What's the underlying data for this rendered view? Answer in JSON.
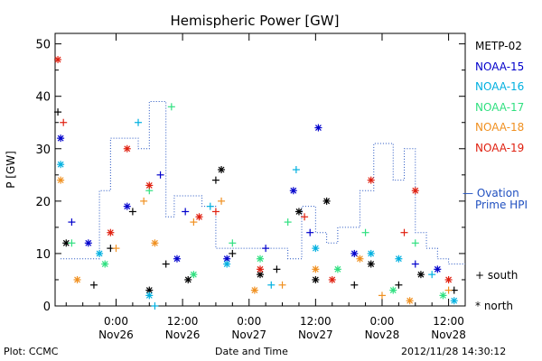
{
  "chart_data": {
    "type": "scatter",
    "title": "Hemispheric Power [GW]",
    "ylabel": "P [GW]",
    "xlabel": "Date and Time",
    "ylim": [
      0,
      52
    ],
    "yticks": [
      0,
      10,
      20,
      30,
      40,
      50
    ],
    "xlim": [
      "2012-11-25T13:00",
      "2012-11-28T15:00"
    ],
    "xticks": [
      {
        "time": "2012-11-26T00:00",
        "label1": "0:00",
        "label2": "Nov26"
      },
      {
        "time": "2012-11-26T12:00",
        "label1": "12:00",
        "label2": "Nov26"
      },
      {
        "time": "2012-11-27T00:00",
        "label1": "0:00",
        "label2": "Nov27"
      },
      {
        "time": "2012-11-27T12:00",
        "label1": "12:00",
        "label2": "Nov27"
      },
      {
        "time": "2012-11-28T00:00",
        "label1": "0:00",
        "label2": "Nov28"
      },
      {
        "time": "2012-11-28T12:00",
        "label1": "12:00",
        "label2": "Nov28"
      }
    ],
    "grid": false,
    "legend_position": "right",
    "series": [
      {
        "name": "METP-02",
        "color": "#000000",
        "points": [
          {
            "x": "2012-11-25T13:30",
            "y": 37,
            "m": "+"
          },
          {
            "x": "2012-11-25T15:00",
            "y": 12,
            "m": "*"
          },
          {
            "x": "2012-11-25T20:00",
            "y": 4,
            "m": "+"
          },
          {
            "x": "2012-11-25T23:00",
            "y": 11,
            "m": "+"
          },
          {
            "x": "2012-11-26T03:00",
            "y": 18,
            "m": "+"
          },
          {
            "x": "2012-11-26T06:00",
            "y": 3,
            "m": "*"
          },
          {
            "x": "2012-11-26T09:00",
            "y": 8,
            "m": "+"
          },
          {
            "x": "2012-11-26T13:00",
            "y": 5,
            "m": "*"
          },
          {
            "x": "2012-11-26T19:00",
            "y": 26,
            "m": "*"
          },
          {
            "x": "2012-11-26T18:00",
            "y": 24,
            "m": "+"
          },
          {
            "x": "2012-11-26T21:00",
            "y": 10,
            "m": "+"
          },
          {
            "x": "2012-11-27T02:00",
            "y": 6,
            "m": "*"
          },
          {
            "x": "2012-11-27T05:00",
            "y": 7,
            "m": "+"
          },
          {
            "x": "2012-11-27T09:00",
            "y": 18,
            "m": "*"
          },
          {
            "x": "2012-11-27T12:00",
            "y": 5,
            "m": "*"
          },
          {
            "x": "2012-11-27T14:00",
            "y": 20,
            "m": "*"
          },
          {
            "x": "2012-11-27T19:00",
            "y": 4,
            "m": "+"
          },
          {
            "x": "2012-11-27T22:00",
            "y": 8,
            "m": "*"
          },
          {
            "x": "2012-11-28T03:00",
            "y": 4,
            "m": "+"
          },
          {
            "x": "2012-11-28T07:00",
            "y": 6,
            "m": "*"
          },
          {
            "x": "2012-11-28T13:00",
            "y": 3,
            "m": "+"
          }
        ],
        "ovation": []
      },
      {
        "name": "NOAA-15",
        "color": "#0000cc",
        "points": [
          {
            "x": "2012-11-25T14:00",
            "y": 32,
            "m": "*"
          },
          {
            "x": "2012-11-25T16:00",
            "y": 16,
            "m": "+"
          },
          {
            "x": "2012-11-25T19:00",
            "y": 12,
            "m": "*"
          },
          {
            "x": "2012-11-26T02:00",
            "y": 19,
            "m": "*"
          },
          {
            "x": "2012-11-26T08:00",
            "y": 25,
            "m": "+"
          },
          {
            "x": "2012-11-26T11:00",
            "y": 9,
            "m": "*"
          },
          {
            "x": "2012-11-26T12:30",
            "y": 18,
            "m": "+"
          },
          {
            "x": "2012-11-26T20:00",
            "y": 9,
            "m": "*"
          },
          {
            "x": "2012-11-27T03:00",
            "y": 11,
            "m": "+"
          },
          {
            "x": "2012-11-27T08:00",
            "y": 22,
            "m": "*"
          },
          {
            "x": "2012-11-27T11:00",
            "y": 14,
            "m": "+"
          },
          {
            "x": "2012-11-27T12:30",
            "y": 34,
            "m": "*"
          },
          {
            "x": "2012-11-27T19:00",
            "y": 10,
            "m": "*"
          },
          {
            "x": "2012-11-28T06:00",
            "y": 8,
            "m": "+"
          },
          {
            "x": "2012-11-28T10:00",
            "y": 7,
            "m": "*"
          }
        ],
        "ovation": [
          {
            "x": "2012-11-25T14:00",
            "y": 9
          },
          {
            "x": "2012-11-25T21:00",
            "y": 22
          },
          {
            "x": "2012-11-25T23:00",
            "y": 32
          },
          {
            "x": "2012-11-26T04:00",
            "y": 30
          },
          {
            "x": "2012-11-26T06:00",
            "y": 39
          },
          {
            "x": "2012-11-26T09:00",
            "y": 17
          },
          {
            "x": "2012-11-26T10:30",
            "y": 21
          },
          {
            "x": "2012-11-26T15:30",
            "y": 19
          },
          {
            "x": "2012-11-26T18:00",
            "y": 11
          },
          {
            "x": "2012-11-27T00:00",
            "y": 11
          },
          {
            "x": "2012-11-27T05:00",
            "y": 11
          },
          {
            "x": "2012-11-27T07:00",
            "y": 9
          },
          {
            "x": "2012-11-27T09:30",
            "y": 19
          },
          {
            "x": "2012-11-27T12:00",
            "y": 14
          },
          {
            "x": "2012-11-27T14:00",
            "y": 12
          },
          {
            "x": "2012-11-27T16:00",
            "y": 15
          },
          {
            "x": "2012-11-27T20:00",
            "y": 22
          },
          {
            "x": "2012-11-27T22:30",
            "y": 31
          },
          {
            "x": "2012-11-28T02:00",
            "y": 24
          },
          {
            "x": "2012-11-28T04:00",
            "y": 30
          },
          {
            "x": "2012-11-28T06:00",
            "y": 14
          },
          {
            "x": "2012-11-28T08:00",
            "y": 11
          },
          {
            "x": "2012-11-28T10:00",
            "y": 9
          },
          {
            "x": "2012-11-28T12:00",
            "y": 8
          },
          {
            "x": "2012-11-28T15:00",
            "y": 8
          }
        ]
      },
      {
        "name": "NOAA-16",
        "color": "#00b0e0",
        "points": [
          {
            "x": "2012-11-25T14:00",
            "y": 27,
            "m": "*"
          },
          {
            "x": "2012-11-25T21:00",
            "y": 10,
            "m": "*"
          },
          {
            "x": "2012-11-26T04:00",
            "y": 35,
            "m": "+"
          },
          {
            "x": "2012-11-26T06:00",
            "y": 2,
            "m": "*"
          },
          {
            "x": "2012-11-26T07:00",
            "y": 0,
            "m": "+"
          },
          {
            "x": "2012-11-26T17:00",
            "y": 19,
            "m": "+"
          },
          {
            "x": "2012-11-26T20:00",
            "y": 8,
            "m": "*"
          },
          {
            "x": "2012-11-27T04:00",
            "y": 4,
            "m": "+"
          },
          {
            "x": "2012-11-27T08:30",
            "y": 26,
            "m": "+"
          },
          {
            "x": "2012-11-27T12:00",
            "y": 11,
            "m": "*"
          },
          {
            "x": "2012-11-27T22:00",
            "y": 10,
            "m": "*"
          },
          {
            "x": "2012-11-28T03:00",
            "y": 9,
            "m": "*"
          },
          {
            "x": "2012-11-28T09:00",
            "y": 6,
            "m": "+"
          },
          {
            "x": "2012-11-28T13:00",
            "y": 1,
            "m": "*"
          }
        ],
        "ovation": []
      },
      {
        "name": "NOAA-17",
        "color": "#30e080",
        "points": [
          {
            "x": "2012-11-25T16:00",
            "y": 12,
            "m": "+"
          },
          {
            "x": "2012-11-25T22:00",
            "y": 8,
            "m": "*"
          },
          {
            "x": "2012-11-26T06:00",
            "y": 22,
            "m": "+"
          },
          {
            "x": "2012-11-26T10:00",
            "y": 38,
            "m": "+"
          },
          {
            "x": "2012-11-26T14:00",
            "y": 6,
            "m": "*"
          },
          {
            "x": "2012-11-26T21:00",
            "y": 12,
            "m": "+"
          },
          {
            "x": "2012-11-27T02:00",
            "y": 9,
            "m": "*"
          },
          {
            "x": "2012-11-27T07:00",
            "y": 16,
            "m": "+"
          },
          {
            "x": "2012-11-27T16:00",
            "y": 7,
            "m": "*"
          },
          {
            "x": "2012-11-27T21:00",
            "y": 14,
            "m": "+"
          },
          {
            "x": "2012-11-28T02:00",
            "y": 3,
            "m": "*"
          },
          {
            "x": "2012-11-28T06:00",
            "y": 12,
            "m": "+"
          },
          {
            "x": "2012-11-28T11:00",
            "y": 2,
            "m": "*"
          }
        ],
        "ovation": []
      },
      {
        "name": "NOAA-18",
        "color": "#f09020",
        "points": [
          {
            "x": "2012-11-25T14:00",
            "y": 24,
            "m": "*"
          },
          {
            "x": "2012-11-25T17:00",
            "y": 5,
            "m": "*"
          },
          {
            "x": "2012-11-26T00:00",
            "y": 11,
            "m": "+"
          },
          {
            "x": "2012-11-26T05:00",
            "y": 20,
            "m": "+"
          },
          {
            "x": "2012-11-26T07:00",
            "y": 12,
            "m": "*"
          },
          {
            "x": "2012-11-26T14:00",
            "y": 16,
            "m": "+"
          },
          {
            "x": "2012-11-26T19:00",
            "y": 20,
            "m": "+"
          },
          {
            "x": "2012-11-27T01:00",
            "y": 3,
            "m": "*"
          },
          {
            "x": "2012-11-27T06:00",
            "y": 4,
            "m": "+"
          },
          {
            "x": "2012-11-27T12:00",
            "y": 7,
            "m": "*"
          },
          {
            "x": "2012-11-27T20:00",
            "y": 9,
            "m": "*"
          },
          {
            "x": "2012-11-28T00:00",
            "y": 2,
            "m": "+"
          },
          {
            "x": "2012-11-28T05:00",
            "y": 1,
            "m": "*"
          },
          {
            "x": "2012-11-28T12:00",
            "y": 3,
            "m": "+"
          }
        ],
        "ovation": []
      },
      {
        "name": "NOAA-19",
        "color": "#e02010",
        "points": [
          {
            "x": "2012-11-25T13:30",
            "y": 47,
            "m": "*"
          },
          {
            "x": "2012-11-25T14:30",
            "y": 35,
            "m": "+"
          },
          {
            "x": "2012-11-25T23:00",
            "y": 14,
            "m": "*"
          },
          {
            "x": "2012-11-26T02:00",
            "y": 30,
            "m": "*"
          },
          {
            "x": "2012-11-26T06:00",
            "y": 23,
            "m": "*"
          },
          {
            "x": "2012-11-26T15:00",
            "y": 17,
            "m": "*"
          },
          {
            "x": "2012-11-26T18:00",
            "y": 18,
            "m": "+"
          },
          {
            "x": "2012-11-27T02:00",
            "y": 7,
            "m": "*"
          },
          {
            "x": "2012-11-27T10:00",
            "y": 17,
            "m": "+"
          },
          {
            "x": "2012-11-27T15:00",
            "y": 5,
            "m": "*"
          },
          {
            "x": "2012-11-27T22:00",
            "y": 24,
            "m": "*"
          },
          {
            "x": "2012-11-28T04:00",
            "y": 14,
            "m": "+"
          },
          {
            "x": "2012-11-28T06:00",
            "y": 22,
            "m": "*"
          },
          {
            "x": "2012-11-28T12:00",
            "y": 5,
            "m": "*"
          }
        ],
        "ovation": []
      }
    ]
  },
  "legend": {
    "ovation_line1": "Ovation",
    "ovation_line2": "Prime HPI",
    "ovation_color": "#2050c0",
    "marker_south_symbol": "+",
    "marker_south_label": "south",
    "marker_north_symbol": "*",
    "marker_north_label": "north"
  },
  "footer": {
    "left": "Plot: CCMC",
    "center": "Date and Time",
    "right": "2012/11/28 14:30:12"
  }
}
